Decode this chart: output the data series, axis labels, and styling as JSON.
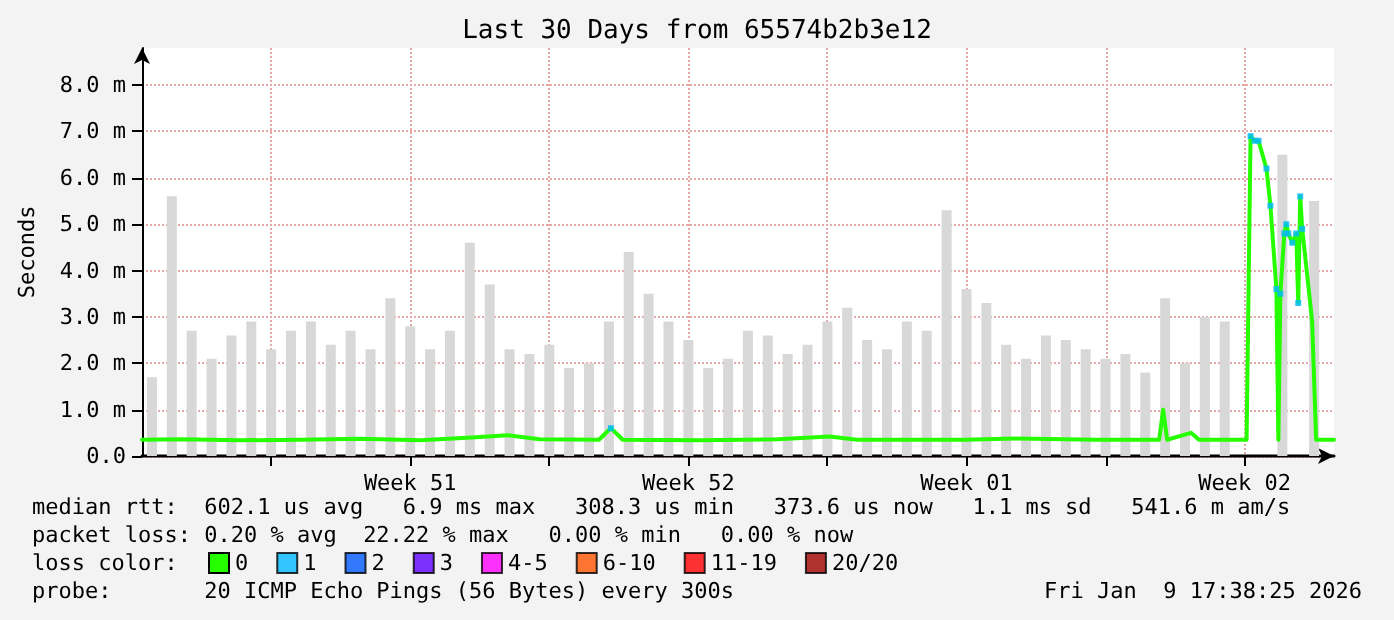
{
  "chart_data": {
    "type": "line",
    "title": "Last 30 Days from 65574b2b3e12",
    "ylabel": "Seconds",
    "xlim": [
      "2025-12-11T18:00",
      "2026-01-10T18:00"
    ],
    "xticks": [
      {
        "value": "2025-12-15T00:00",
        "label": null
      },
      {
        "value": "2025-12-18T12:00",
        "label": "Week 51"
      },
      {
        "value": "2025-12-22T00:00",
        "label": null
      },
      {
        "value": "2025-12-25T12:00",
        "label": "Week 52"
      },
      {
        "value": "2025-12-29T00:00",
        "label": null
      },
      {
        "value": "2026-01-01T12:00",
        "label": "Week 01"
      },
      {
        "value": "2026-01-05T00:00",
        "label": null
      },
      {
        "value": "2026-01-08T12:00",
        "label": "Week 02"
      }
    ],
    "ylim": [
      0,
      8.8
    ],
    "yticks": [
      {
        "value": 0,
        "label": "0.0"
      },
      {
        "value": 1,
        "label": "1.0 m"
      },
      {
        "value": 2,
        "label": "2.0 m"
      },
      {
        "value": 3,
        "label": "3.0 m"
      },
      {
        "value": 4,
        "label": "4.0 m"
      },
      {
        "value": 5,
        "label": "5.0 m"
      },
      {
        "value": 6,
        "label": "6.0 m"
      },
      {
        "value": 7,
        "label": "7.0 m"
      },
      {
        "value": 8,
        "label": "8.0 m"
      }
    ],
    "grid": true,
    "legend": "bottom",
    "legend_title": "loss color:",
    "line_style": "solid",
    "series": [
      {
        "type": "bar",
        "color": "#d8d8d8",
        "x": [
          "2025-12-12T00:00",
          "2025-12-12T12:00",
          "2025-12-13T00:00",
          "2025-12-13T12:00",
          "2025-12-14T00:00",
          "2025-12-14T12:00",
          "2025-12-15T00:00",
          "2025-12-15T12:00",
          "2025-12-16T00:00",
          "2025-12-16T12:00",
          "2025-12-17T00:00",
          "2025-12-17T12:00",
          "2025-12-18T00:00",
          "2025-12-18T12:00",
          "2025-12-19T00:00",
          "2025-12-19T12:00",
          "2025-12-20T00:00",
          "2025-12-20T12:00",
          "2025-12-21T00:00",
          "2025-12-21T12:00",
          "2025-12-22T00:00",
          "2025-12-22T12:00",
          "2025-12-23T00:00",
          "2025-12-23T12:00",
          "2025-12-24T00:00",
          "2025-12-24T12:00",
          "2025-12-25T00:00",
          "2025-12-25T12:00",
          "2025-12-26T00:00",
          "2025-12-26T12:00",
          "2025-12-27T00:00",
          "2025-12-27T12:00",
          "2025-12-28T00:00",
          "2025-12-28T12:00",
          "2025-12-29T00:00",
          "2025-12-29T12:00",
          "2025-12-30T00:00",
          "2025-12-30T12:00",
          "2025-12-31T00:00",
          "2025-12-31T12:00",
          "2026-01-01T00:00",
          "2026-01-01T12:00",
          "2026-01-02T00:00",
          "2026-01-02T12:00",
          "2026-01-03T00:00",
          "2026-01-03T12:00",
          "2026-01-04T00:00",
          "2026-01-04T12:00",
          "2026-01-05T00:00",
          "2026-01-05T12:00",
          "2026-01-06T00:00",
          "2026-01-06T12:00",
          "2026-01-07T00:00",
          "2026-01-07T12:00",
          "2026-01-08T00:00",
          "2026-01-08T15:36",
          "2026-01-09T03:36",
          "2026-01-09T10:48",
          "2026-01-09T16:48",
          "2026-01-10T01:12",
          "2026-01-10T06:00"
        ],
        "values": [
          1.7,
          5.6,
          2.7,
          2.1,
          2.6,
          2.9,
          2.3,
          2.7,
          2.9,
          2.4,
          2.7,
          2.3,
          3.4,
          2.8,
          2.3,
          2.7,
          4.6,
          3.7,
          2.3,
          2.2,
          2.4,
          1.9,
          2.0,
          2.9,
          4.4,
          3.5,
          2.9,
          2.5,
          1.9,
          2.1,
          2.7,
          2.6,
          2.2,
          2.4,
          2.9,
          3.2,
          2.5,
          2.3,
          2.9,
          2.7,
          5.3,
          3.6,
          3.3,
          2.4,
          2.1,
          2.6,
          2.5,
          2.3,
          2.1,
          2.2,
          1.8,
          3.4,
          2.0,
          3.0,
          2.9,
          null,
          null,
          6.5,
          null,
          null,
          5.5
        ]
      },
      {
        "name": "0",
        "color": "#26ff00",
        "x": [
          "2025-12-11T18:00",
          "2025-12-12T18:00",
          "2025-12-14T06:00",
          "2025-12-15T18:00",
          "2025-12-17T06:00",
          "2025-12-18T18:00",
          "2025-12-20T01:12",
          "2025-12-20T22:48",
          "2025-12-21T18:00",
          "2025-12-23T06:00",
          "2025-12-23T13:12",
          "2025-12-23T20:24",
          "2025-12-25T18:00",
          "2025-12-27T18:00",
          "2025-12-29T01:12",
          "2025-12-29T18:00",
          "2026-01-01T10:48",
          "2026-01-02T18:00",
          "2026-01-04T18:00",
          "2026-01-06T08:24",
          "2026-01-06T10:48",
          "2026-01-06T13:12",
          "2026-01-07T03:36",
          "2026-01-07T08:24",
          "2026-01-08T13:12",
          "2026-01-08T15:36",
          "2026-01-08T18:00",
          "2026-01-08T20:24",
          "2026-01-09T01:12",
          "2026-01-09T03:36",
          "2026-01-09T07:12",
          "2026-01-09T08:24",
          "2026-01-09T09:36",
          "2026-01-09T12:00",
          "2026-01-09T13:12",
          "2026-01-09T14:24",
          "2026-01-09T16:48",
          "2026-01-09T19:12",
          "2026-01-09T20:24",
          "2026-01-09T21:36",
          "2026-01-09T22:48",
          "2026-01-10T04:48",
          "2026-01-10T07:12",
          "2026-01-10T18:00"
        ],
        "values": [
          0.35,
          0.36,
          0.34,
          0.35,
          0.37,
          0.34,
          0.4,
          0.45,
          0.36,
          0.35,
          0.6,
          0.35,
          0.34,
          0.36,
          0.42,
          0.35,
          0.35,
          0.38,
          0.35,
          0.35,
          1.0,
          0.35,
          0.5,
          0.35,
          0.35,
          6.9,
          6.8,
          6.8,
          6.2,
          5.4,
          3.6,
          0.35,
          3.5,
          4.8,
          5.0,
          4.8,
          4.6,
          4.8,
          3.3,
          5.6,
          4.9,
          2.9,
          0.35,
          0.35
        ]
      },
      {
        "name": "1",
        "type": "scatter",
        "marker": "square",
        "color": "#00b8ff",
        "x": [
          "2025-12-23T13:12",
          "2026-01-08T15:36",
          "2026-01-08T18:00",
          "2026-01-08T20:24",
          "2026-01-09T01:12",
          "2026-01-09T03:36",
          "2026-01-09T07:12",
          "2026-01-09T09:36",
          "2026-01-09T12:00",
          "2026-01-09T13:12",
          "2026-01-09T14:24",
          "2026-01-09T16:48",
          "2026-01-09T19:12",
          "2026-01-09T20:24",
          "2026-01-09T21:36",
          "2026-01-09T22:48"
        ],
        "values": [
          0.6,
          6.9,
          6.8,
          6.8,
          6.2,
          5.4,
          3.6,
          3.5,
          4.8,
          5.0,
          4.8,
          4.6,
          4.8,
          3.3,
          5.6,
          4.9
        ]
      },
      {
        "name": "2",
        "type": "scatter",
        "color": "#0059ff"
      },
      {
        "name": "3",
        "type": "scatter",
        "color": "#5e00ff"
      },
      {
        "name": "4-5",
        "type": "scatter",
        "color": "#ff00ff"
      },
      {
        "name": "6-10",
        "type": "scatter",
        "color": "#ff5500"
      },
      {
        "name": "11-19",
        "type": "scatter",
        "color": "#ff0000"
      },
      {
        "name": "20/20",
        "type": "scatter",
        "color": "#a10000"
      }
    ],
    "annotations": [
      "median rtt:  602.1 us avg   6.9 ms max   308.3 us min   373.6 us now   1.1 ms sd   541.6 m am/s",
      "packet loss: 0.20 % avg  22.22 % max   0.00 % min   0.00 % now",
      "probe:       20 ICMP Echo Pings (56 Bytes) every 300s",
      "Fri Jan  9 17:38:25 2026"
    ]
  }
}
